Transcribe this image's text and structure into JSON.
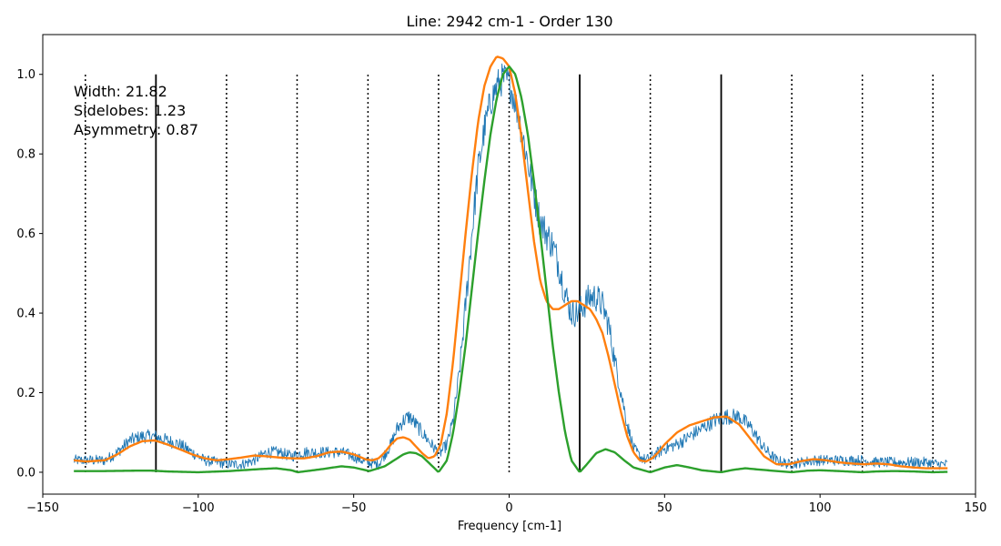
{
  "chart_data": {
    "type": "line",
    "title": "Line: 2942 cm-1 - Order 130",
    "xlabel": "Frequency [cm-1]",
    "ylabel": "",
    "xlim": [
      -150,
      150
    ],
    "ylim": [
      -0.055,
      1.1
    ],
    "xticks": [
      -150,
      -100,
      -50,
      0,
      50,
      100,
      150
    ],
    "xtick_labels": [
      "−150",
      "−100",
      "−50",
      "0",
      "50",
      "100",
      "150"
    ],
    "yticks": [
      0.0,
      0.2,
      0.4,
      0.6,
      0.8,
      1.0
    ],
    "ytick_labels": [
      "0.0",
      "0.2",
      "0.4",
      "0.6",
      "0.8",
      "1.0"
    ],
    "grid": false,
    "colors": {
      "measured": "#1f77b4",
      "fit": "#ff7f0e",
      "model": "#2ca02c",
      "markers": "#000000"
    },
    "annotations": [
      "Width: 21.82",
      "Sidelobes: 1.23",
      "Asymmetry: 0.87"
    ],
    "solid_markers_x": [
      -113.6,
      22.7,
      68.2
    ],
    "dotted_markers_x": [
      -136.3,
      -90.9,
      -68.2,
      -45.4,
      -22.7,
      0,
      45.4,
      90.9,
      113.6,
      136.3
    ],
    "marker_ylim": [
      0.0,
      1.0
    ],
    "series": [
      {
        "type": "noisy",
        "x": [
          -140,
          -136,
          -130,
          -126,
          -122,
          -118,
          -114,
          -110,
          -106,
          -102,
          -98,
          -94,
          -90,
          -86,
          -82,
          -78,
          -74,
          -70,
          -66,
          -62,
          -58,
          -54,
          -50,
          -46,
          -42,
          -38,
          -36,
          -34,
          -32,
          -30,
          -28,
          -26,
          -24,
          -22,
          -20,
          -18,
          -16,
          -14,
          -12,
          -10,
          -8,
          -6,
          -4,
          -2,
          0,
          2,
          4,
          6,
          8,
          10,
          12,
          14,
          16,
          18,
          20,
          22,
          24,
          26,
          28,
          30,
          32,
          34,
          36,
          38,
          40,
          42,
          44,
          46,
          48,
          50,
          54,
          58,
          62,
          66,
          70,
          74,
          78,
          82,
          86,
          90,
          94,
          98,
          102,
          106,
          110,
          114,
          118,
          122,
          126,
          130,
          134,
          138,
          141
        ],
        "values": [
          0.03,
          0.03,
          0.03,
          0.05,
          0.08,
          0.09,
          0.09,
          0.08,
          0.07,
          0.05,
          0.03,
          0.025,
          0.02,
          0.02,
          0.03,
          0.05,
          0.05,
          0.04,
          0.05,
          0.05,
          0.05,
          0.05,
          0.04,
          0.025,
          0.02,
          0.07,
          0.11,
          0.13,
          0.14,
          0.12,
          0.1,
          0.08,
          0.06,
          0.05,
          0.07,
          0.13,
          0.25,
          0.42,
          0.6,
          0.76,
          0.86,
          0.93,
          0.97,
          0.99,
          0.98,
          0.93,
          0.86,
          0.78,
          0.7,
          0.63,
          0.6,
          0.57,
          0.52,
          0.45,
          0.4,
          0.4,
          0.42,
          0.44,
          0.44,
          0.42,
          0.37,
          0.28,
          0.2,
          0.12,
          0.06,
          0.04,
          0.03,
          0.04,
          0.05,
          0.06,
          0.07,
          0.09,
          0.11,
          0.13,
          0.14,
          0.14,
          0.11,
          0.06,
          0.03,
          0.02,
          0.025,
          0.03,
          0.03,
          0.03,
          0.03,
          0.03,
          0.025,
          0.025,
          0.025,
          0.025,
          0.025,
          0.02,
          0.02
        ]
      },
      {
        "type": "fit",
        "x": [
          -140,
          -136,
          -130,
          -126,
          -122,
          -118,
          -114,
          -110,
          -106,
          -102,
          -98,
          -94,
          -90,
          -86,
          -82,
          -78,
          -74,
          -70,
          -66,
          -62,
          -58,
          -54,
          -50,
          -46,
          -44,
          -42,
          -40,
          -38,
          -36,
          -34,
          -32,
          -30,
          -28,
          -26,
          -24,
          -22,
          -20,
          -18,
          -16,
          -14,
          -12,
          -10,
          -8,
          -6,
          -4,
          -2,
          0,
          2,
          4,
          6,
          8,
          10,
          12,
          14,
          16,
          18,
          20,
          22,
          24,
          26,
          28,
          30,
          32,
          34,
          36,
          38,
          40,
          42,
          44,
          46,
          48,
          50,
          54,
          58,
          62,
          66,
          70,
          74,
          78,
          82,
          86,
          90,
          94,
          98,
          102,
          106,
          110,
          114,
          118,
          122,
          126,
          130,
          134,
          138,
          141
        ],
        "values": [
          0.03,
          0.027,
          0.03,
          0.045,
          0.065,
          0.078,
          0.08,
          0.07,
          0.058,
          0.045,
          0.035,
          0.03,
          0.033,
          0.037,
          0.042,
          0.04,
          0.037,
          0.035,
          0.035,
          0.04,
          0.05,
          0.052,
          0.045,
          0.032,
          0.03,
          0.035,
          0.05,
          0.07,
          0.085,
          0.088,
          0.082,
          0.065,
          0.048,
          0.035,
          0.04,
          0.07,
          0.15,
          0.28,
          0.44,
          0.6,
          0.75,
          0.88,
          0.97,
          1.02,
          1.045,
          1.04,
          1.02,
          0.95,
          0.84,
          0.71,
          0.58,
          0.48,
          0.43,
          0.41,
          0.41,
          0.42,
          0.43,
          0.43,
          0.42,
          0.41,
          0.385,
          0.35,
          0.29,
          0.22,
          0.15,
          0.09,
          0.05,
          0.03,
          0.027,
          0.035,
          0.05,
          0.07,
          0.1,
          0.118,
          0.128,
          0.138,
          0.14,
          0.12,
          0.08,
          0.04,
          0.02,
          0.02,
          0.028,
          0.033,
          0.03,
          0.025,
          0.022,
          0.02,
          0.022,
          0.02,
          0.015,
          0.012,
          0.01,
          0.01,
          0.01
        ]
      },
      {
        "type": "model",
        "x": [
          -140,
          -130,
          -120,
          -115,
          -110,
          -100,
          -90,
          -80,
          -75,
          -70,
          -68,
          -60,
          -54,
          -50,
          -45,
          -40,
          -36,
          -34,
          -32,
          -30,
          -28,
          -26,
          -24,
          -22.7,
          -20,
          -18,
          -16,
          -14,
          -12,
          -10,
          -8,
          -6,
          -4,
          -2,
          0,
          2,
          4,
          6,
          8,
          10,
          12,
          14,
          16,
          18,
          20,
          22.7,
          25,
          28,
          31,
          34,
          37,
          40,
          45.4,
          50,
          54,
          58,
          62,
          68.2,
          72,
          76,
          80,
          86,
          90.9,
          96,
          100,
          106,
          113.6,
          118,
          124,
          130,
          136.3,
          141
        ],
        "values": [
          0.003,
          0.003,
          0.004,
          0.004,
          0.002,
          0.0,
          0.003,
          0.008,
          0.01,
          0.005,
          0.0,
          0.008,
          0.015,
          0.012,
          0.003,
          0.015,
          0.035,
          0.045,
          0.05,
          0.048,
          0.04,
          0.025,
          0.01,
          0.0,
          0.03,
          0.1,
          0.2,
          0.32,
          0.46,
          0.6,
          0.73,
          0.85,
          0.94,
          1.0,
          1.02,
          1.0,
          0.94,
          0.85,
          0.73,
          0.6,
          0.46,
          0.32,
          0.2,
          0.1,
          0.03,
          0.0,
          0.02,
          0.048,
          0.058,
          0.05,
          0.03,
          0.012,
          0.0,
          0.012,
          0.018,
          0.012,
          0.005,
          0.0,
          0.006,
          0.01,
          0.007,
          0.003,
          0.0,
          0.004,
          0.005,
          0.003,
          0.0,
          0.002,
          0.003,
          0.002,
          0.0,
          0.001
        ]
      }
    ]
  }
}
